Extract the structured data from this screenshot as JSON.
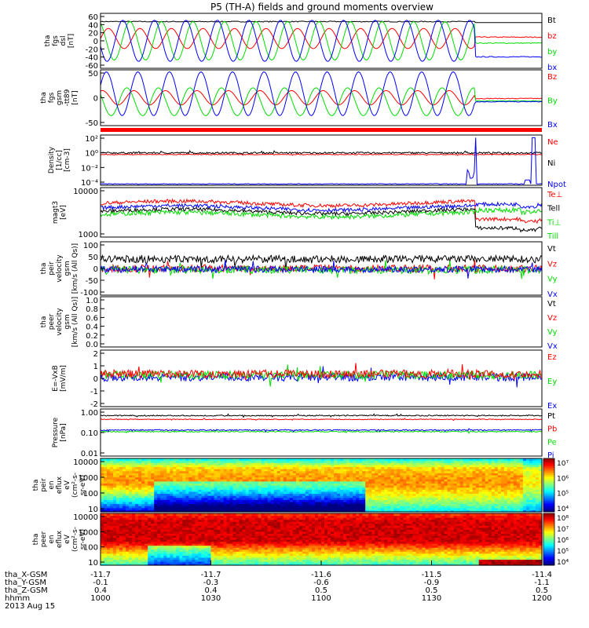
{
  "title": "P5 (TH-A) fields and ground moments overview",
  "colors": {
    "black": "#000000",
    "red": "#ff0000",
    "green": "#00dd00",
    "blue": "#0000ff"
  },
  "chart_data": [
    {
      "id": "fgs_dsl",
      "type": "line",
      "ylabel": [
        "tha",
        "fgs",
        "dsl",
        "[nT]"
      ],
      "yticks": [
        "60",
        "40",
        "20",
        "0",
        "-20",
        "-40",
        "-60"
      ],
      "ylim": [
        -60,
        60
      ],
      "legend": [
        {
          "name": "Bt",
          "color": "black"
        },
        {
          "name": "bz",
          "color": "red"
        },
        {
          "name": "by",
          "color": "green"
        },
        {
          "name": "bx",
          "color": "blue"
        }
      ],
      "series": [
        {
          "name": "Bt",
          "color": "black",
          "kind": "const",
          "before": 42,
          "after": 40
        },
        {
          "name": "bz",
          "color": "red",
          "kind": "osc",
          "offset": 5,
          "amp": 22,
          "before": 5,
          "after": 8
        },
        {
          "name": "by",
          "color": "green",
          "kind": "osc",
          "offset": 0,
          "amp": 42,
          "phase": 2.0,
          "before": 0,
          "after": -5
        },
        {
          "name": "bx",
          "color": "blue",
          "kind": "osc",
          "offset": 0,
          "amp": 45,
          "phase": 3.4,
          "before": 0,
          "after": -35
        }
      ]
    },
    {
      "id": "fgs_gsm",
      "type": "line",
      "ylabel": [
        "tha",
        "fgs",
        "gsm",
        "-tt89",
        "[nT]"
      ],
      "yticks": [
        "50",
        "0",
        "-50"
      ],
      "ylim": [
        -70,
        70
      ],
      "legend": [
        {
          "name": "Bz",
          "color": "red"
        },
        {
          "name": "By",
          "color": "green"
        },
        {
          "name": "Bx",
          "color": "blue"
        }
      ],
      "series": [
        {
          "name": "Bz",
          "color": "red",
          "kind": "osc",
          "offset": 0,
          "amp": 18,
          "phase": 1.2,
          "before": 0,
          "after": -2
        },
        {
          "name": "By",
          "color": "green",
          "kind": "osc",
          "offset": -10,
          "amp": 35,
          "phase": 2.6,
          "before": 0,
          "after": -8
        },
        {
          "name": "Bx",
          "color": "blue",
          "kind": "osc",
          "offset": 10,
          "amp": 55,
          "phase": 0.4,
          "before": 0,
          "after": -10
        }
      ]
    },
    {
      "id": "density",
      "type": "line",
      "log": true,
      "ylabel": [
        "Density",
        "[1/cc]",
        "[cm-3]"
      ],
      "yticks": [
        "10²",
        "10⁰",
        "10⁻²",
        "10⁻⁴"
      ],
      "ylim": [
        -5,
        2.6
      ],
      "legend": [
        {
          "name": "Ne",
          "color": "red"
        },
        {
          "name": "Ni",
          "color": "black"
        },
        {
          "name": "Npot",
          "color": "blue"
        }
      ],
      "series": [
        {
          "name": "Ni",
          "color": "black",
          "kind": "noise",
          "level": -0.1,
          "noise": 0.12
        },
        {
          "name": "Ne",
          "color": "red",
          "kind": "noise",
          "level": -0.35,
          "noise": 0.05
        },
        {
          "name": "Npot",
          "color": "blue",
          "kind": "npot",
          "level": -4.8
        }
      ]
    },
    {
      "id": "temp",
      "type": "line",
      "log": true,
      "ylabel": [
        "magt3",
        "[eV]"
      ],
      "yticks": [
        "10000",
        "1000"
      ],
      "ylim": [
        2.95,
        4.05
      ],
      "legend": [
        {
          "name": "Te⊥",
          "color": "red"
        },
        {
          "name": "Tell",
          "color": "black"
        },
        {
          "name": "Ti⊥",
          "color": "green"
        },
        {
          "name": "Till",
          "color": "green"
        }
      ],
      "series": [
        {
          "name": "Te⊥",
          "color": "red",
          "kind": "temp",
          "level": 3.7,
          "after": 3.35,
          "noise": 0.04
        },
        {
          "name": "Tell",
          "color": "black",
          "kind": "temp",
          "level": 3.52,
          "after": 3.15,
          "noise": 0.04
        },
        {
          "name": "Ti⊥",
          "color": "blue",
          "kind": "temp",
          "level": 3.6,
          "after": 3.68,
          "noise": 0.04
        },
        {
          "name": "Till",
          "color": "green",
          "kind": "temp",
          "level": 3.45,
          "after": 3.55,
          "noise": 0.05
        }
      ]
    },
    {
      "id": "peir_vel",
      "type": "line",
      "ylabel": [
        "tha",
        "peir",
        "velocity",
        "gsm",
        "[km/s (All Qs)]"
      ],
      "yticks": [
        "100",
        "50",
        "0",
        "-50",
        "-100"
      ],
      "ylim": [
        -100,
        100
      ],
      "legend": [
        {
          "name": "Vt",
          "color": "black"
        },
        {
          "name": "Vz",
          "color": "red"
        },
        {
          "name": "Vy",
          "color": "green"
        },
        {
          "name": "Vx",
          "color": "blue"
        }
      ],
      "series": [
        {
          "name": "Vt",
          "color": "black",
          "kind": "noise",
          "level": 35,
          "noise": 14
        },
        {
          "name": "Vz",
          "color": "red",
          "kind": "noise",
          "level": 0,
          "noise": 14
        },
        {
          "name": "Vy",
          "color": "green",
          "kind": "noise",
          "level": -5,
          "noise": 14
        },
        {
          "name": "Vx",
          "color": "blue",
          "kind": "noise",
          "level": -3,
          "noise": 12
        }
      ]
    },
    {
      "id": "peer_vel",
      "type": "line",
      "empty": true,
      "ylabel": [
        "tha",
        "peer",
        "velocity",
        "gsm",
        "[km/s (All Qs)]"
      ],
      "yticks": [
        "1.0",
        "0.8",
        "0.6",
        "0.4",
        "0.2",
        "0.0"
      ],
      "ylim": [
        0,
        1
      ],
      "legend": [
        {
          "name": "Vt",
          "color": "black"
        },
        {
          "name": "Vz",
          "color": "red"
        },
        {
          "name": "Vy",
          "color": "green"
        },
        {
          "name": "Vx",
          "color": "blue"
        }
      ],
      "series": []
    },
    {
      "id": "efield",
      "type": "line",
      "ylabel": [
        "E=-VxB",
        "[mV/m]"
      ],
      "yticks": [
        "2",
        "1",
        "0",
        "-1",
        "-2"
      ],
      "ylim": [
        -2.5,
        2.5
      ],
      "legend": [
        {
          "name": "Ez",
          "color": "red"
        },
        {
          "name": "Ey",
          "color": "green"
        },
        {
          "name": "Ex",
          "color": "blue"
        }
      ],
      "series": [
        {
          "name": "Ex",
          "color": "blue",
          "kind": "noise",
          "level": 0.1,
          "noise": 0.35
        },
        {
          "name": "Ey",
          "color": "green",
          "kind": "noise",
          "level": 0.3,
          "noise": 0.35
        },
        {
          "name": "Ez",
          "color": "red",
          "kind": "noise",
          "level": 0.4,
          "noise": 0.35
        }
      ]
    },
    {
      "id": "pressure",
      "type": "line",
      "log": true,
      "ylabel": [
        "Pressure",
        "[nPa]"
      ],
      "yticks": [
        "1.00",
        "0.10",
        "0.01"
      ],
      "ylim": [
        -2,
        0.5
      ],
      "legend": [
        {
          "name": "Pt",
          "color": "black"
        },
        {
          "name": "Pb",
          "color": "red"
        },
        {
          "name": "Pe",
          "color": "green"
        },
        {
          "name": "Pi",
          "color": "blue"
        }
      ],
      "series": [
        {
          "name": "Pt",
          "color": "black",
          "kind": "noise",
          "level": 0.15,
          "noise": 0.03
        },
        {
          "name": "Pb",
          "color": "red",
          "kind": "noise",
          "level": -0.05,
          "noise": 0.02
        },
        {
          "name": "Pe",
          "color": "green",
          "kind": "noise",
          "level": -0.7,
          "noise": 0.03
        },
        {
          "name": "Pi",
          "color": "blue",
          "kind": "noise",
          "level": -0.62,
          "noise": 0.03
        }
      ]
    },
    {
      "id": "peir_spec",
      "type": "heatmap",
      "log": true,
      "ylabel": [
        "tha",
        "peir",
        "en",
        "eflux",
        "eV",
        "(cm²-s-",
        "sr-eV)"
      ],
      "yticks": [
        "10000",
        "1000",
        "100",
        "10"
      ],
      "ylim": [
        1,
        4.2
      ],
      "colorbar": [
        "10⁷",
        "10⁶",
        "10⁵",
        "10⁴"
      ],
      "profile": "ion"
    },
    {
      "id": "peer_spec",
      "type": "heatmap",
      "log": true,
      "ylabel": [
        "tha",
        "peer",
        "en",
        "eflux",
        "eV",
        "(cm²-s-",
        "sr-eV)"
      ],
      "yticks": [
        "10000",
        "1000",
        "100",
        "10"
      ],
      "ylim": [
        1,
        4.2
      ],
      "colorbar": [
        "10⁸",
        "10⁷",
        "10⁶",
        "10⁵",
        "10⁴"
      ],
      "profile": "electron"
    }
  ],
  "xaxis": {
    "positions": [
      "tha_X-GSM",
      "tha_Y-GSM",
      "tha_Z-GSM",
      "hhmm",
      "2013 Aug 15"
    ],
    "ticks": [
      {
        "x": "-11.7",
        "y": "-0.1",
        "z": "0.4",
        "t": "1000"
      },
      {
        "x": "-11.7",
        "y": "-0.3",
        "z": "0.4",
        "t": "1030"
      },
      {
        "x": "-11.6",
        "y": "-0.6",
        "z": "0.5",
        "t": "1100"
      },
      {
        "x": "-11.5",
        "y": "-0.9",
        "z": "0.5",
        "t": "1130"
      },
      {
        "x": "-11.4",
        "y": "-1.1",
        "z": "0.5",
        "t": "1200"
      }
    ]
  }
}
